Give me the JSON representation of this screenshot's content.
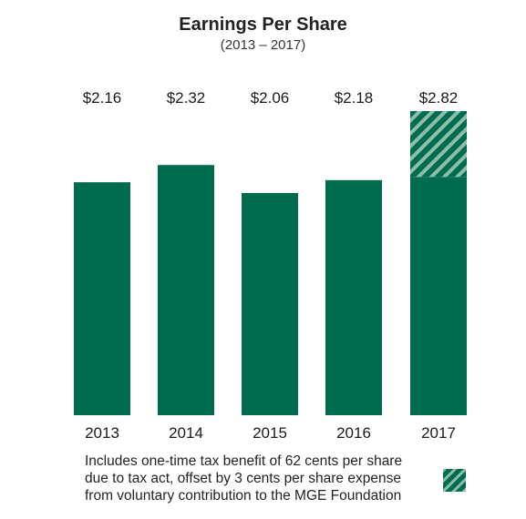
{
  "chart_data": {
    "type": "bar",
    "title": "Earnings Per Share",
    "subtitle": "(2013 – 2017)",
    "categories": [
      "2013",
      "2014",
      "2015",
      "2016",
      "2017"
    ],
    "values": [
      2.16,
      2.32,
      2.06,
      2.18,
      2.82
    ],
    "value_labels": [
      "$2.16",
      "$2.32",
      "$2.06",
      "$2.18",
      "$2.82"
    ],
    "series": [
      {
        "values": [
          2.16,
          2.32,
          2.06,
          2.18,
          2.21
        ]
      },
      {
        "values": [
          0,
          0,
          0,
          0,
          0.61
        ],
        "style": "hatched"
      }
    ],
    "ylim": [
      0,
      2.9
    ],
    "grid": false,
    "legend": "bottom",
    "colors": {
      "bar": "#006c4f",
      "hatch": "#8cbfa9",
      "text": "#1a1a1a"
    }
  },
  "footnote": {
    "lines": [
      "Includes one-time tax benefit of 62 cents per share",
      "due to tax act, offset by 3 cents per share expense",
      "from voluntary contribution to the MGE Foundation"
    ]
  }
}
